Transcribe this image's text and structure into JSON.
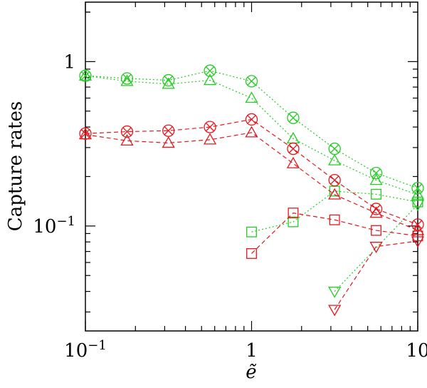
{
  "chart_data": {
    "type": "scatter",
    "title": "",
    "xlabel": "ẽ",
    "ylabel": "Capture rates",
    "xscale": "log",
    "yscale": "log",
    "xlim": [
      0.1,
      10
    ],
    "ylim": [
      0.023,
      2.3
    ],
    "grid": false,
    "xticks": [
      {
        "value": 0.1,
        "base": "10",
        "exp": "−1"
      },
      {
        "value": 1,
        "base": "1",
        "exp": ""
      },
      {
        "value": 10,
        "base": "10",
        "exp": ""
      }
    ],
    "yticks": [
      {
        "value": 1,
        "base": "1",
        "exp": ""
      },
      {
        "value": 0.1,
        "base": "10",
        "exp": "−1"
      }
    ],
    "colors": {
      "red": "#e8151b",
      "green": "#22cc22"
    },
    "series": [
      {
        "color": "green",
        "marker": "circle-x",
        "dash": "dot",
        "x": [
          0.1,
          0.178,
          0.316,
          0.562,
          1,
          1.78,
          3.16,
          5.62,
          10
        ],
        "y": [
          0.82,
          0.79,
          0.77,
          0.88,
          0.76,
          0.455,
          0.295,
          0.21,
          0.17
        ]
      },
      {
        "color": "green",
        "marker": "triangle-up",
        "dash": "dot",
        "x": [
          0.1,
          0.178,
          0.316,
          0.562,
          1,
          1.78,
          3.16,
          5.62,
          10
        ],
        "y": [
          0.82,
          0.76,
          0.73,
          0.77,
          0.6,
          0.34,
          0.25,
          0.19,
          0.155
        ]
      },
      {
        "color": "green",
        "marker": "square",
        "dash": "dot",
        "x": [
          1,
          1.78,
          3.16,
          5.62,
          10
        ],
        "y": [
          0.092,
          0.106,
          0.163,
          0.156,
          0.14
        ]
      },
      {
        "color": "green",
        "marker": "triangle-down",
        "dash": "dot",
        "x": [
          3.16,
          10
        ],
        "y": [
          0.04,
          0.135
        ]
      },
      {
        "color": "red",
        "marker": "circle-x",
        "dash": "dash",
        "x": [
          0.1,
          0.178,
          0.316,
          0.562,
          1,
          1.78,
          3.16,
          5.62,
          10
        ],
        "y": [
          0.365,
          0.375,
          0.38,
          0.4,
          0.445,
          0.295,
          0.19,
          0.127,
          0.102
        ]
      },
      {
        "color": "red",
        "marker": "triangle-up",
        "dash": "dash",
        "x": [
          0.1,
          0.178,
          0.316,
          0.562,
          1,
          1.78,
          3.16,
          5.62,
          10
        ],
        "y": [
          0.36,
          0.33,
          0.32,
          0.335,
          0.37,
          0.24,
          0.155,
          0.12,
          0.094
        ]
      },
      {
        "color": "red",
        "marker": "square",
        "dash": "dash",
        "x": [
          1,
          1.78,
          3.16,
          5.62,
          10
        ],
        "y": [
          0.068,
          0.12,
          0.109,
          0.094,
          0.087
        ]
      },
      {
        "color": "red",
        "marker": "triangle-down",
        "dash": "dash",
        "x": [
          3.16,
          5.62,
          10
        ],
        "y": [
          0.031,
          0.075,
          0.081
        ]
      }
    ]
  }
}
